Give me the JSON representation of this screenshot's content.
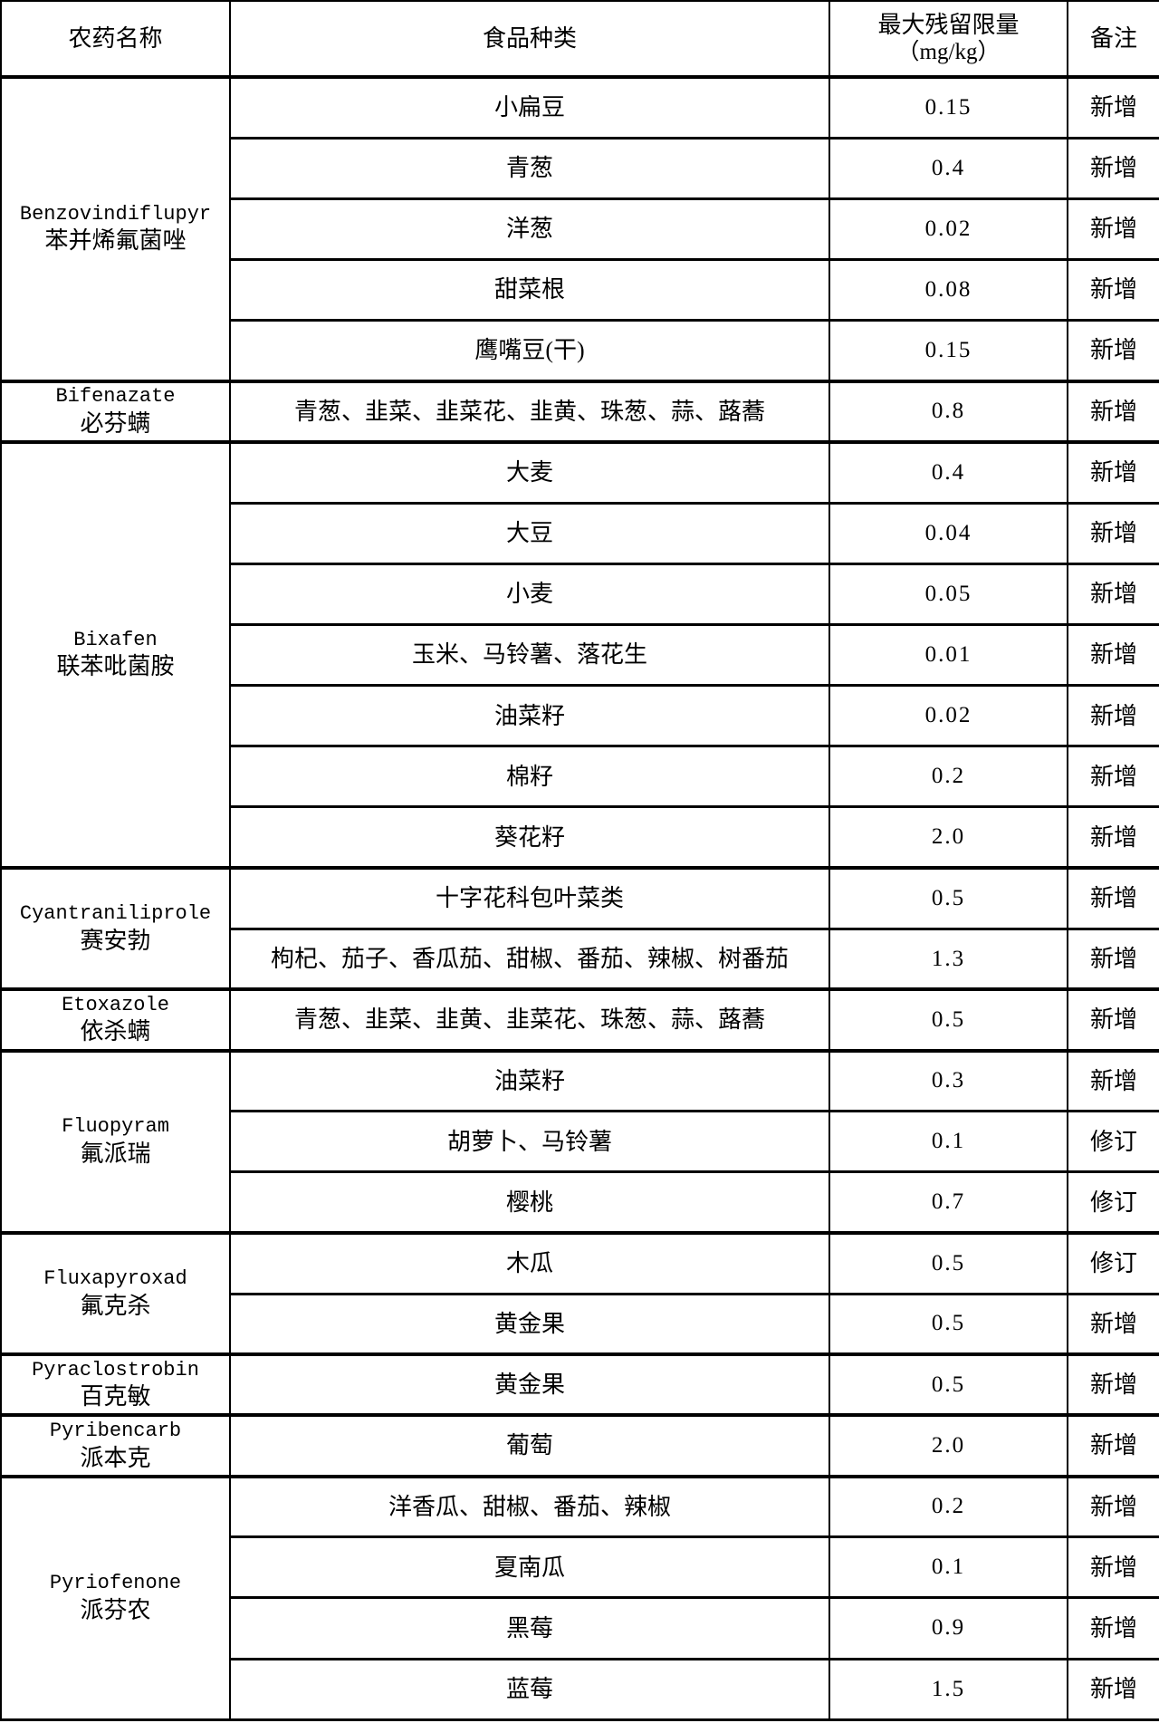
{
  "table": {
    "headers": {
      "pesticide": "农药名称",
      "food": "食品种类",
      "limit_line1": "最大残留限量",
      "limit_line2": "（mg/kg）",
      "note": "备注"
    },
    "note_values_seen": [
      "新增",
      "修订"
    ],
    "sections": [
      {
        "name_en": "Benzovindiflupyr",
        "name_zh": "苯并烯氟菌唑",
        "rows": [
          {
            "food": "小扁豆",
            "limit": "0.15",
            "note": "新增"
          },
          {
            "food": "青葱",
            "limit": "0.4",
            "note": "新增"
          },
          {
            "food": "洋葱",
            "limit": "0.02",
            "note": "新增"
          },
          {
            "food": "甜菜根",
            "limit": "0.08",
            "note": "新增"
          },
          {
            "food": "鹰嘴豆(干)",
            "limit": "0.15",
            "note": "新增"
          }
        ]
      },
      {
        "name_en": "Bifenazate",
        "name_zh": "必芬螨",
        "rows": [
          {
            "food": "青葱、韭菜、韭菜花、韭黄、珠葱、蒜、蕗蕎",
            "limit": "0.8",
            "note": "新增"
          }
        ]
      },
      {
        "name_en": "Bixafen",
        "name_zh": "联苯吡菌胺",
        "rows": [
          {
            "food": "大麦",
            "limit": "0.4",
            "note": "新增"
          },
          {
            "food": "大豆",
            "limit": "0.04",
            "note": "新增"
          },
          {
            "food": "小麦",
            "limit": "0.05",
            "note": "新增"
          },
          {
            "food": "玉米、马铃薯、落花生",
            "limit": "0.01",
            "note": "新增"
          },
          {
            "food": "油菜籽",
            "limit": "0.02",
            "note": "新增"
          },
          {
            "food": "棉籽",
            "limit": "0.2",
            "note": "新增"
          },
          {
            "food": "葵花籽",
            "limit": "2.0",
            "note": "新增"
          }
        ]
      },
      {
        "name_en": "Cyantraniliprole",
        "name_zh": "赛安勃",
        "rows": [
          {
            "food": "十字花科包叶菜类",
            "limit": "0.5",
            "note": "新增"
          },
          {
            "food": "枸杞、茄子、香瓜茄、甜椒、番茄、辣椒、树番茄",
            "limit": "1.3",
            "note": "新增"
          }
        ]
      },
      {
        "name_en": "Etoxazole",
        "name_zh": "依杀螨",
        "rows": [
          {
            "food": "青葱、韭菜、韭黄、韭菜花、珠葱、蒜、蕗蕎",
            "limit": "0.5",
            "note": "新增"
          }
        ]
      },
      {
        "name_en": "Fluopyram",
        "name_zh": "氟派瑞",
        "rows": [
          {
            "food": "油菜籽",
            "limit": "0.3",
            "note": "新增"
          },
          {
            "food": "胡萝卜、马铃薯",
            "limit": "0.1",
            "note": "修订"
          },
          {
            "food": "樱桃",
            "limit": "0.7",
            "note": "修订"
          }
        ]
      },
      {
        "name_en": "Fluxapyroxad",
        "name_zh": "氟克杀",
        "rows": [
          {
            "food": "木瓜",
            "limit": "0.5",
            "note": "修订"
          },
          {
            "food": "黄金果",
            "limit": "0.5",
            "note": "新增"
          }
        ]
      },
      {
        "name_en": "Pyraclostrobin",
        "name_zh": "百克敏",
        "rows": [
          {
            "food": "黄金果",
            "limit": "0.5",
            "note": "新增"
          }
        ]
      },
      {
        "name_en": "Pyribencarb",
        "name_zh": "派本克",
        "rows": [
          {
            "food": "葡萄",
            "limit": "2.0",
            "note": "新增"
          }
        ]
      },
      {
        "name_en": "Pyriofenone",
        "name_zh": "派芬农",
        "rows": [
          {
            "food": "洋香瓜、甜椒、番茄、辣椒",
            "limit": "0.2",
            "note": "新增"
          },
          {
            "food": "夏南瓜",
            "limit": "0.1",
            "note": "新增"
          },
          {
            "food": "黑莓",
            "limit": "0.9",
            "note": "新增"
          },
          {
            "food": "蓝莓",
            "limit": "1.5",
            "note": "新增"
          }
        ]
      }
    ]
  }
}
